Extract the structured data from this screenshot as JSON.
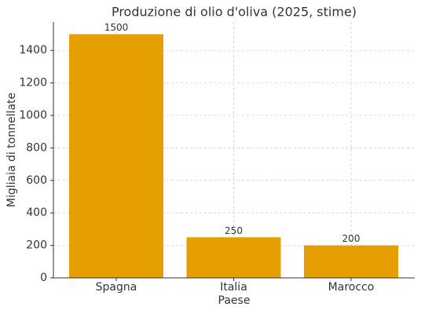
{
  "chart_data": {
    "type": "bar",
    "title": "Produzione di olio d'oliva (2025, stime)",
    "x_label": "Paese",
    "y_label": "Migliaia di tonnellate",
    "categories": [
      "Spagna",
      "Italia",
      "Marocco"
    ],
    "values": [
      1500,
      250,
      200
    ],
    "color": "#e69f00",
    "ylim": [
      0,
      1575
    ],
    "yticks": [
      0,
      200,
      400,
      600,
      800,
      1000,
      1200,
      1400
    ],
    "grid": true
  }
}
